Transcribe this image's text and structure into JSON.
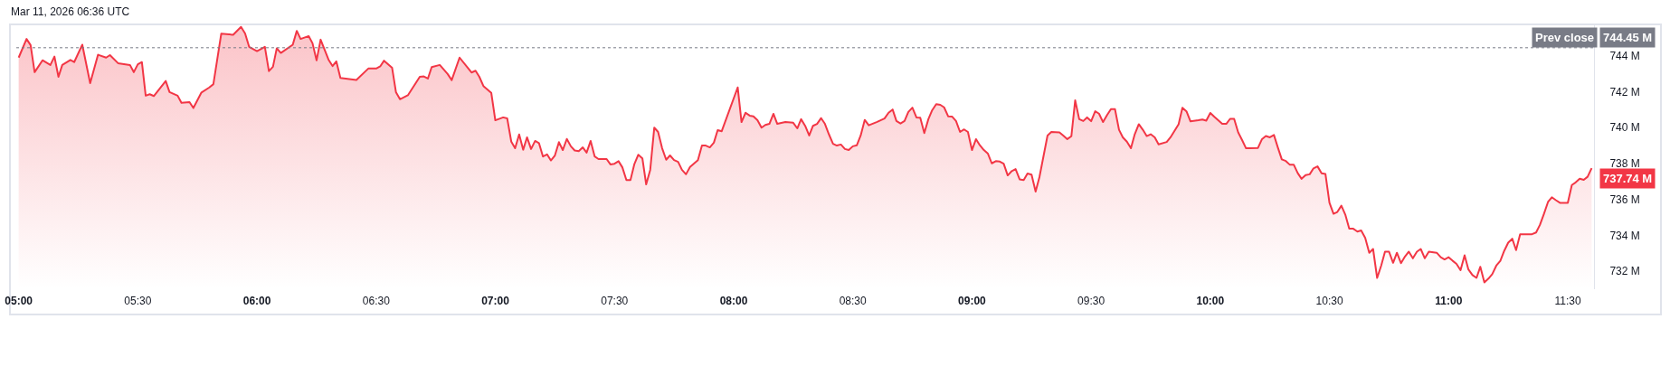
{
  "chart_data": {
    "type": "area",
    "color": "#f23645",
    "x": [
      5,
      5.033,
      5.05,
      5.067,
      5.1,
      5.133,
      5.15,
      5.167,
      5.183,
      5.217,
      5.233,
      5.267,
      5.3,
      5.333,
      5.367,
      5.383,
      5.417,
      5.467,
      5.483,
      5.5,
      5.517,
      5.533,
      5.55,
      5.567,
      5.617,
      5.633,
      5.667,
      5.683,
      5.717,
      5.733,
      5.767,
      5.8,
      5.817,
      5.85,
      5.9,
      5.933,
      5.95,
      5.967,
      6,
      6.033,
      6.05,
      6.067,
      6.083,
      6.1,
      6.15,
      6.167,
      6.183,
      6.217,
      6.233,
      6.25,
      6.267,
      6.3,
      6.317,
      6.333,
      6.35,
      6.417,
      6.467,
      6.5,
      6.517,
      6.533,
      6.567,
      6.583,
      6.6,
      6.633,
      6.683,
      6.7,
      6.717,
      6.733,
      6.767,
      6.8,
      6.817,
      6.85,
      6.9,
      6.917,
      6.933,
      6.95,
      6.983,
      7,
      7.033,
      7.05,
      7.067,
      7.083,
      7.1,
      7.117,
      7.133,
      7.15,
      7.167,
      7.183,
      7.2,
      7.217,
      7.233,
      7.25,
      7.267,
      7.283,
      7.3,
      7.317,
      7.333,
      7.35,
      7.367,
      7.383,
      7.4,
      7.417,
      7.433,
      7.467,
      7.483,
      7.5,
      7.517,
      7.533,
      7.55,
      7.567,
      7.583,
      7.6,
      7.617,
      7.633,
      7.65,
      7.667,
      7.683,
      7.7,
      7.717,
      7.733,
      7.75,
      7.767,
      7.783,
      7.8,
      7.817,
      7.85,
      7.867,
      7.883,
      7.9,
      7.917,
      7.933,
      7.95,
      8.017,
      8.033,
      8.05,
      8.067,
      8.083,
      8.1,
      8.117,
      8.133,
      8.15,
      8.167,
      8.183,
      8.217,
      8.25,
      8.267,
      8.283,
      8.3,
      8.317,
      8.333,
      8.35,
      8.367,
      8.383,
      8.4,
      8.417,
      8.433,
      8.45,
      8.467,
      8.483,
      8.5,
      8.517,
      8.533,
      8.55,
      8.567,
      8.6,
      8.633,
      8.65,
      8.667,
      8.683,
      8.7,
      8.717,
      8.733,
      8.75,
      8.767,
      8.783,
      8.8,
      8.817,
      8.833,
      8.85,
      8.867,
      8.883,
      8.9,
      8.917,
      8.933,
      8.95,
      8.967,
      8.983,
      9,
      9.017,
      9.033,
      9.05,
      9.067,
      9.083,
      9.1,
      9.117,
      9.133,
      9.15,
      9.167,
      9.183,
      9.2,
      9.217,
      9.233,
      9.25,
      9.267,
      9.283,
      9.317,
      9.333,
      9.367,
      9.383,
      9.4,
      9.417,
      9.433,
      9.45,
      9.467,
      9.483,
      9.5,
      9.517,
      9.533,
      9.55,
      9.567,
      9.583,
      9.6,
      9.617,
      9.633,
      9.65,
      9.667,
      9.683,
      9.7,
      9.717,
      9.733,
      9.75,
      9.767,
      9.783,
      9.817,
      9.833,
      9.867,
      9.883,
      9.9,
      9.917,
      9.95,
      9.967,
      9.983,
      10,
      10.017,
      10.033,
      10.05,
      10.067,
      10.083,
      10.1,
      10.117,
      10.133,
      10.15,
      10.167,
      10.2,
      10.217,
      10.233,
      10.25,
      10.267,
      10.283,
      10.3,
      10.317,
      10.333,
      10.35,
      10.367,
      10.383,
      10.4,
      10.417,
      10.433,
      10.45,
      10.467,
      10.483,
      10.5,
      10.517,
      10.533,
      10.55,
      10.567,
      10.583,
      10.6,
      10.617,
      10.633,
      10.65,
      10.667,
      10.683,
      10.7,
      10.717,
      10.733,
      10.75,
      10.767,
      10.783,
      10.8,
      10.817,
      10.833,
      10.85,
      10.867,
      10.883,
      10.9,
      10.917,
      10.95,
      10.967,
      10.983,
      11,
      11.017,
      11.033,
      11.05,
      11.067,
      11.083,
      11.1,
      11.117,
      11.133,
      11.15,
      11.167,
      11.183,
      11.2,
      11.217,
      11.233,
      11.25,
      11.267,
      11.283,
      11.3,
      11.333,
      11.35,
      11.367,
      11.383,
      11.4,
      11.417,
      11.433,
      11.45,
      11.467,
      11.5,
      11.517,
      11.533,
      11.55,
      11.567,
      11.583,
      11.6
    ],
    "values": [
      743.9,
      744.94,
      744.6,
      743.09,
      743.75,
      743.49,
      743.96,
      742.83,
      743.49,
      743.77,
      743.65,
      744.62,
      742.48,
      744.06,
      743.9,
      744.04,
      743.59,
      743.49,
      743.09,
      743.53,
      743.65,
      741.78,
      741.86,
      741.76,
      742.6,
      741.98,
      741.78,
      741.38,
      741.42,
      741.09,
      741.96,
      742.24,
      742.42,
      745.23,
      745.17,
      745.61,
      745.25,
      744.5,
      744.26,
      744.5,
      743.15,
      743.39,
      744.42,
      744.16,
      744.62,
      745.39,
      744.94,
      745.1,
      744.7,
      743.75,
      744.9,
      743.79,
      743.43,
      743.69,
      742.77,
      742.65,
      743.29,
      743.29,
      743.41,
      743.73,
      743.33,
      741.98,
      741.58,
      741.8,
      742.83,
      742.85,
      742.73,
      743.37,
      743.49,
      742.99,
      742.65,
      743.9,
      743.07,
      743.17,
      742.83,
      742.32,
      741.94,
      740.41,
      740.57,
      740.51,
      739.22,
      738.85,
      739.62,
      738.77,
      739.46,
      738.81,
      739.26,
      739.14,
      738.39,
      738.51,
      738.17,
      738.45,
      739.19,
      738.75,
      739.37,
      738.96,
      738.73,
      738.69,
      738.9,
      738.61,
      739.26,
      738.39,
      738.25,
      738.25,
      737.95,
      737.99,
      738.13,
      737.79,
      737.08,
      737.08,
      737.95,
      738.49,
      738.29,
      736.84,
      737.65,
      740.0,
      739.76,
      738.85,
      738.21,
      738.45,
      738.19,
      738.09,
      737.65,
      737.4,
      737.81,
      738.19,
      739.0,
      739.0,
      738.9,
      739.16,
      739.86,
      739.8,
      742.24,
      740.31,
      740.83,
      740.67,
      740.63,
      740.41,
      740.0,
      740.15,
      740.21,
      740.77,
      740.21,
      740.31,
      740.27,
      739.96,
      740.47,
      740.1,
      739.56,
      740.1,
      740.21,
      740.53,
      740.21,
      739.62,
      739.1,
      739.0,
      739.06,
      738.81,
      738.75,
      738.96,
      739.02,
      739.56,
      740.43,
      740.13,
      740.31,
      740.51,
      740.83,
      741.01,
      740.37,
      740.23,
      740.37,
      740.87,
      741.11,
      740.57,
      740.55,
      739.7,
      740.47,
      740.97,
      741.31,
      741.27,
      741.13,
      740.63,
      740.61,
      740.37,
      739.76,
      739.9,
      739.76,
      738.75,
      739.36,
      739.02,
      738.75,
      738.55,
      738.01,
      738.13,
      738.11,
      737.99,
      737.34,
      737.58,
      737.69,
      737.12,
      737.08,
      737.44,
      737.38,
      736.44,
      737.24,
      739.56,
      739.76,
      739.74,
      739.56,
      739.36,
      739.52,
      741.52,
      740.47,
      740.37,
      740.57,
      740.36,
      740.91,
      740.78,
      740.31,
      740.7,
      741.03,
      741.03,
      739.88,
      739.46,
      739.22,
      738.85,
      739.63,
      740.19,
      739.88,
      739.53,
      739.63,
      739.46,
      739.07,
      739.2,
      739.46,
      740.19,
      741.11,
      740.91,
      740.35,
      740.41,
      740.45,
      740.39,
      740.82,
      740.6,
      740.41,
      740.21,
      740.21,
      740.49,
      740.49,
      739.73,
      739.32,
      738.85,
      738.85,
      738.87,
      739.36,
      739.53,
      739.46,
      739.59,
      738.91,
      738.23,
      738.14,
      737.94,
      737.94,
      737.46,
      737.15,
      737.36,
      737.4,
      737.73,
      737.84,
      737.46,
      737.42,
      735.81,
      735.2,
      735.3,
      735.65,
      735.13,
      734.37,
      734.37,
      734.21,
      734.27,
      733.86,
      733.03,
      733.24,
      731.63,
      732.31,
      733.09,
      733.09,
      732.47,
      733.03,
      732.45,
      732.82,
      733.09,
      732.72,
      733.09,
      733.24,
      732.72,
      733.09,
      733.03,
      732.78,
      732.66,
      732.78,
      732.58,
      732.41,
      732.06,
      732.89,
      732.1,
      731.79,
      731.63,
      732.25,
      731.38,
      731.59,
      731.84,
      732.31,
      732.58,
      733.13,
      733.59,
      733.81,
      733.18,
      734.06,
      734.06,
      734.06,
      734.16,
      734.58,
      735.2,
      735.86,
      736.12,
      735.96,
      735.81,
      735.81,
      736.8,
      736.95,
      737.15,
      737.09,
      737.26,
      737.74
    ],
    "xlim": [
      4.99,
      11.61
    ],
    "xticks": [
      {
        "value": 5,
        "label": "05:00"
      },
      {
        "value": 5.5,
        "label": "05:30"
      },
      {
        "value": 6,
        "label": "06:00"
      },
      {
        "value": 6.5,
        "label": "06:30"
      },
      {
        "value": 7,
        "label": "07:00"
      },
      {
        "value": 7.5,
        "label": "07:30"
      },
      {
        "value": 8,
        "label": "08:00"
      },
      {
        "value": 8.5,
        "label": "08:30"
      },
      {
        "value": 9,
        "label": "09:00"
      },
      {
        "value": 9.5,
        "label": "09:30"
      },
      {
        "value": 10,
        "label": "10:00"
      },
      {
        "value": 10.5,
        "label": "10:30"
      },
      {
        "value": 11,
        "label": "11:00"
      },
      {
        "value": 11.5,
        "label": "11:30"
      }
    ],
    "ylim": [
      731.0,
      745.75
    ],
    "yticks": [
      {
        "value": 732,
        "label": "732 M"
      },
      {
        "value": 734,
        "label": "734 M"
      },
      {
        "value": 736,
        "label": "736 M"
      },
      {
        "value": 738,
        "label": "738 M"
      },
      {
        "value": 740,
        "label": "740 M"
      },
      {
        "value": 742,
        "label": "742 M"
      },
      {
        "value": 744,
        "label": "744 M"
      }
    ],
    "ref_lines": [
      {
        "axis": "y",
        "value": 744.45,
        "label": "Prev close",
        "color": "#787b86",
        "line_style": "dotted"
      }
    ],
    "annotations": [
      "Mar 11, 2026 06:36 UTC",
      {
        "text": "744.45 M",
        "x": 11.6,
        "y": 744.45
      },
      {
        "text": "737.74 M",
        "x": 11.6,
        "y": 737.74
      }
    ]
  }
}
